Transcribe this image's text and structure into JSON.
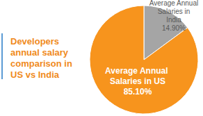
{
  "chart_data": {
    "type": "pie",
    "title": "Developers annual salary comparison in US vs India",
    "categories": [
      "Average Annual Salaries in India",
      "Average Annual Salaries in US"
    ],
    "values": [
      14.9,
      85.1
    ],
    "value_labels": [
      "14.90%",
      "85.10%"
    ],
    "colors": [
      "#a5a5a5",
      "#f7941d"
    ],
    "data_labels": true
  }
}
